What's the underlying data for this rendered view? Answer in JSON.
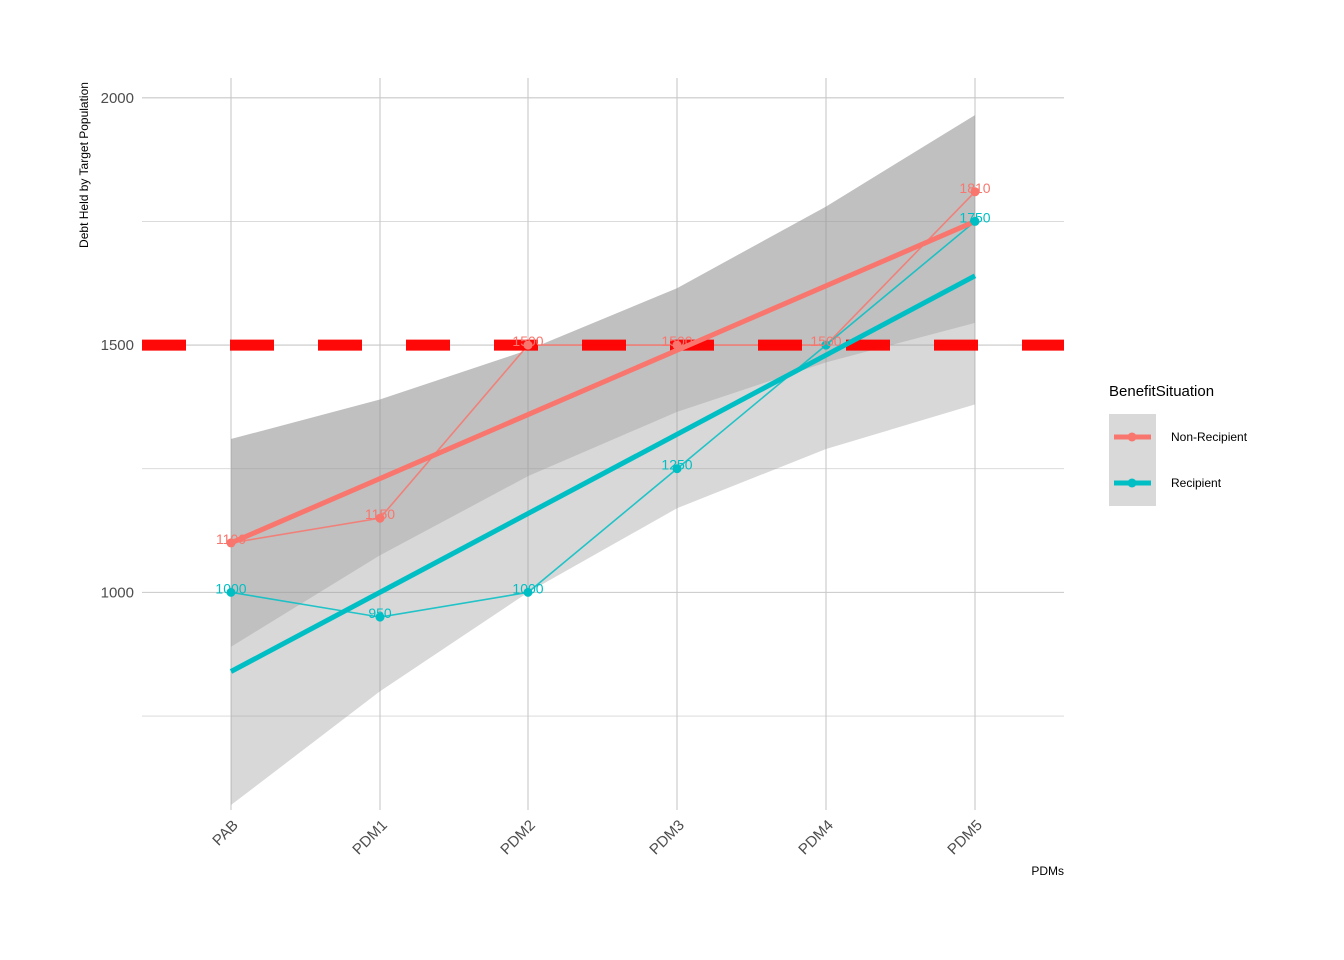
{
  "chart_data": {
    "type": "line",
    "xlabel": "PDMs",
    "ylabel": "Debt Held by Target Population",
    "categories": [
      "PAB",
      "PDM1",
      "PDM2",
      "PDM3",
      "PDM4",
      "PDM5"
    ],
    "ylim": [
      560,
      2040
    ],
    "y_ticks": [
      "1000",
      "1500",
      "2000"
    ],
    "grid": true,
    "series": [
      {
        "name": "Non-Recipient",
        "color": "#F8766D",
        "values": [
          1100,
          1150,
          1500,
          1500,
          1500,
          1810
        ],
        "labels": [
          "1100",
          "1150",
          "1500",
          "1500",
          "1500",
          "1810"
        ],
        "trend": [
          1100,
          1230,
          1360,
          1490,
          1620,
          1750
        ],
        "band_upper": [
          1310,
          1390,
          1490,
          1615,
          1780,
          1965
        ],
        "band_lower": [
          890,
          1075,
          1235,
          1365,
          1465,
          1545
        ]
      },
      {
        "name": "Recipient",
        "color": "#00BFC4",
        "values": [
          1000,
          950,
          1000,
          1250,
          1500,
          1750
        ],
        "labels": [
          "1000",
          "950",
          "1000",
          "1250",
          "",
          "1750"
        ],
        "trend": [
          840,
          1000,
          1160,
          1320,
          1480,
          1640
        ],
        "band_upper": [
          1310,
          1390,
          1490,
          1615,
          1780,
          1965
        ],
        "band_lower": [
          570,
          800,
          1000,
          1170,
          1290,
          1380
        ]
      }
    ],
    "reference_line": {
      "y": 1500,
      "color": "#FF0000",
      "style": "dashed"
    },
    "legend": {
      "title": "BenefitSituation",
      "position": "right"
    }
  }
}
